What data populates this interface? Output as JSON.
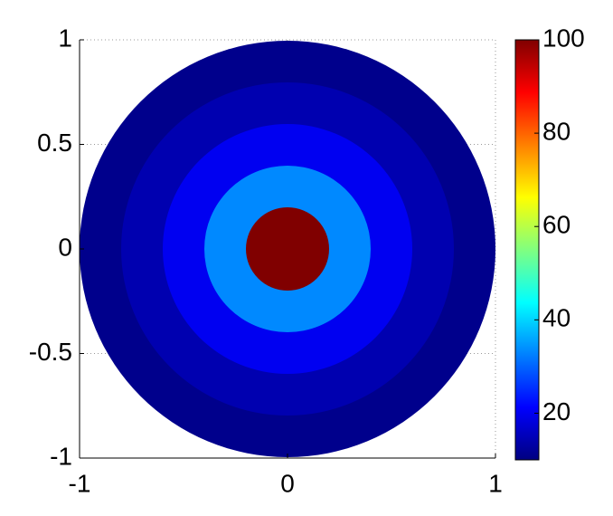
{
  "chart_data": {
    "type": "rings",
    "radii": [
      1,
      0.8,
      0.6,
      0.4,
      0.2
    ],
    "values": [
      11.1,
      14.3,
      20,
      33.3,
      100
    ],
    "colormap": "jet",
    "xlim": [
      -1,
      1
    ],
    "ylim": [
      -1,
      1
    ],
    "xticks": [
      -1,
      0,
      1
    ],
    "yticks": [
      -1,
      -0.5,
      0,
      0.5,
      1
    ],
    "grid": true,
    "clim": [
      10,
      100
    ],
    "cticks": [
      20,
      40,
      60,
      80,
      100
    ]
  }
}
